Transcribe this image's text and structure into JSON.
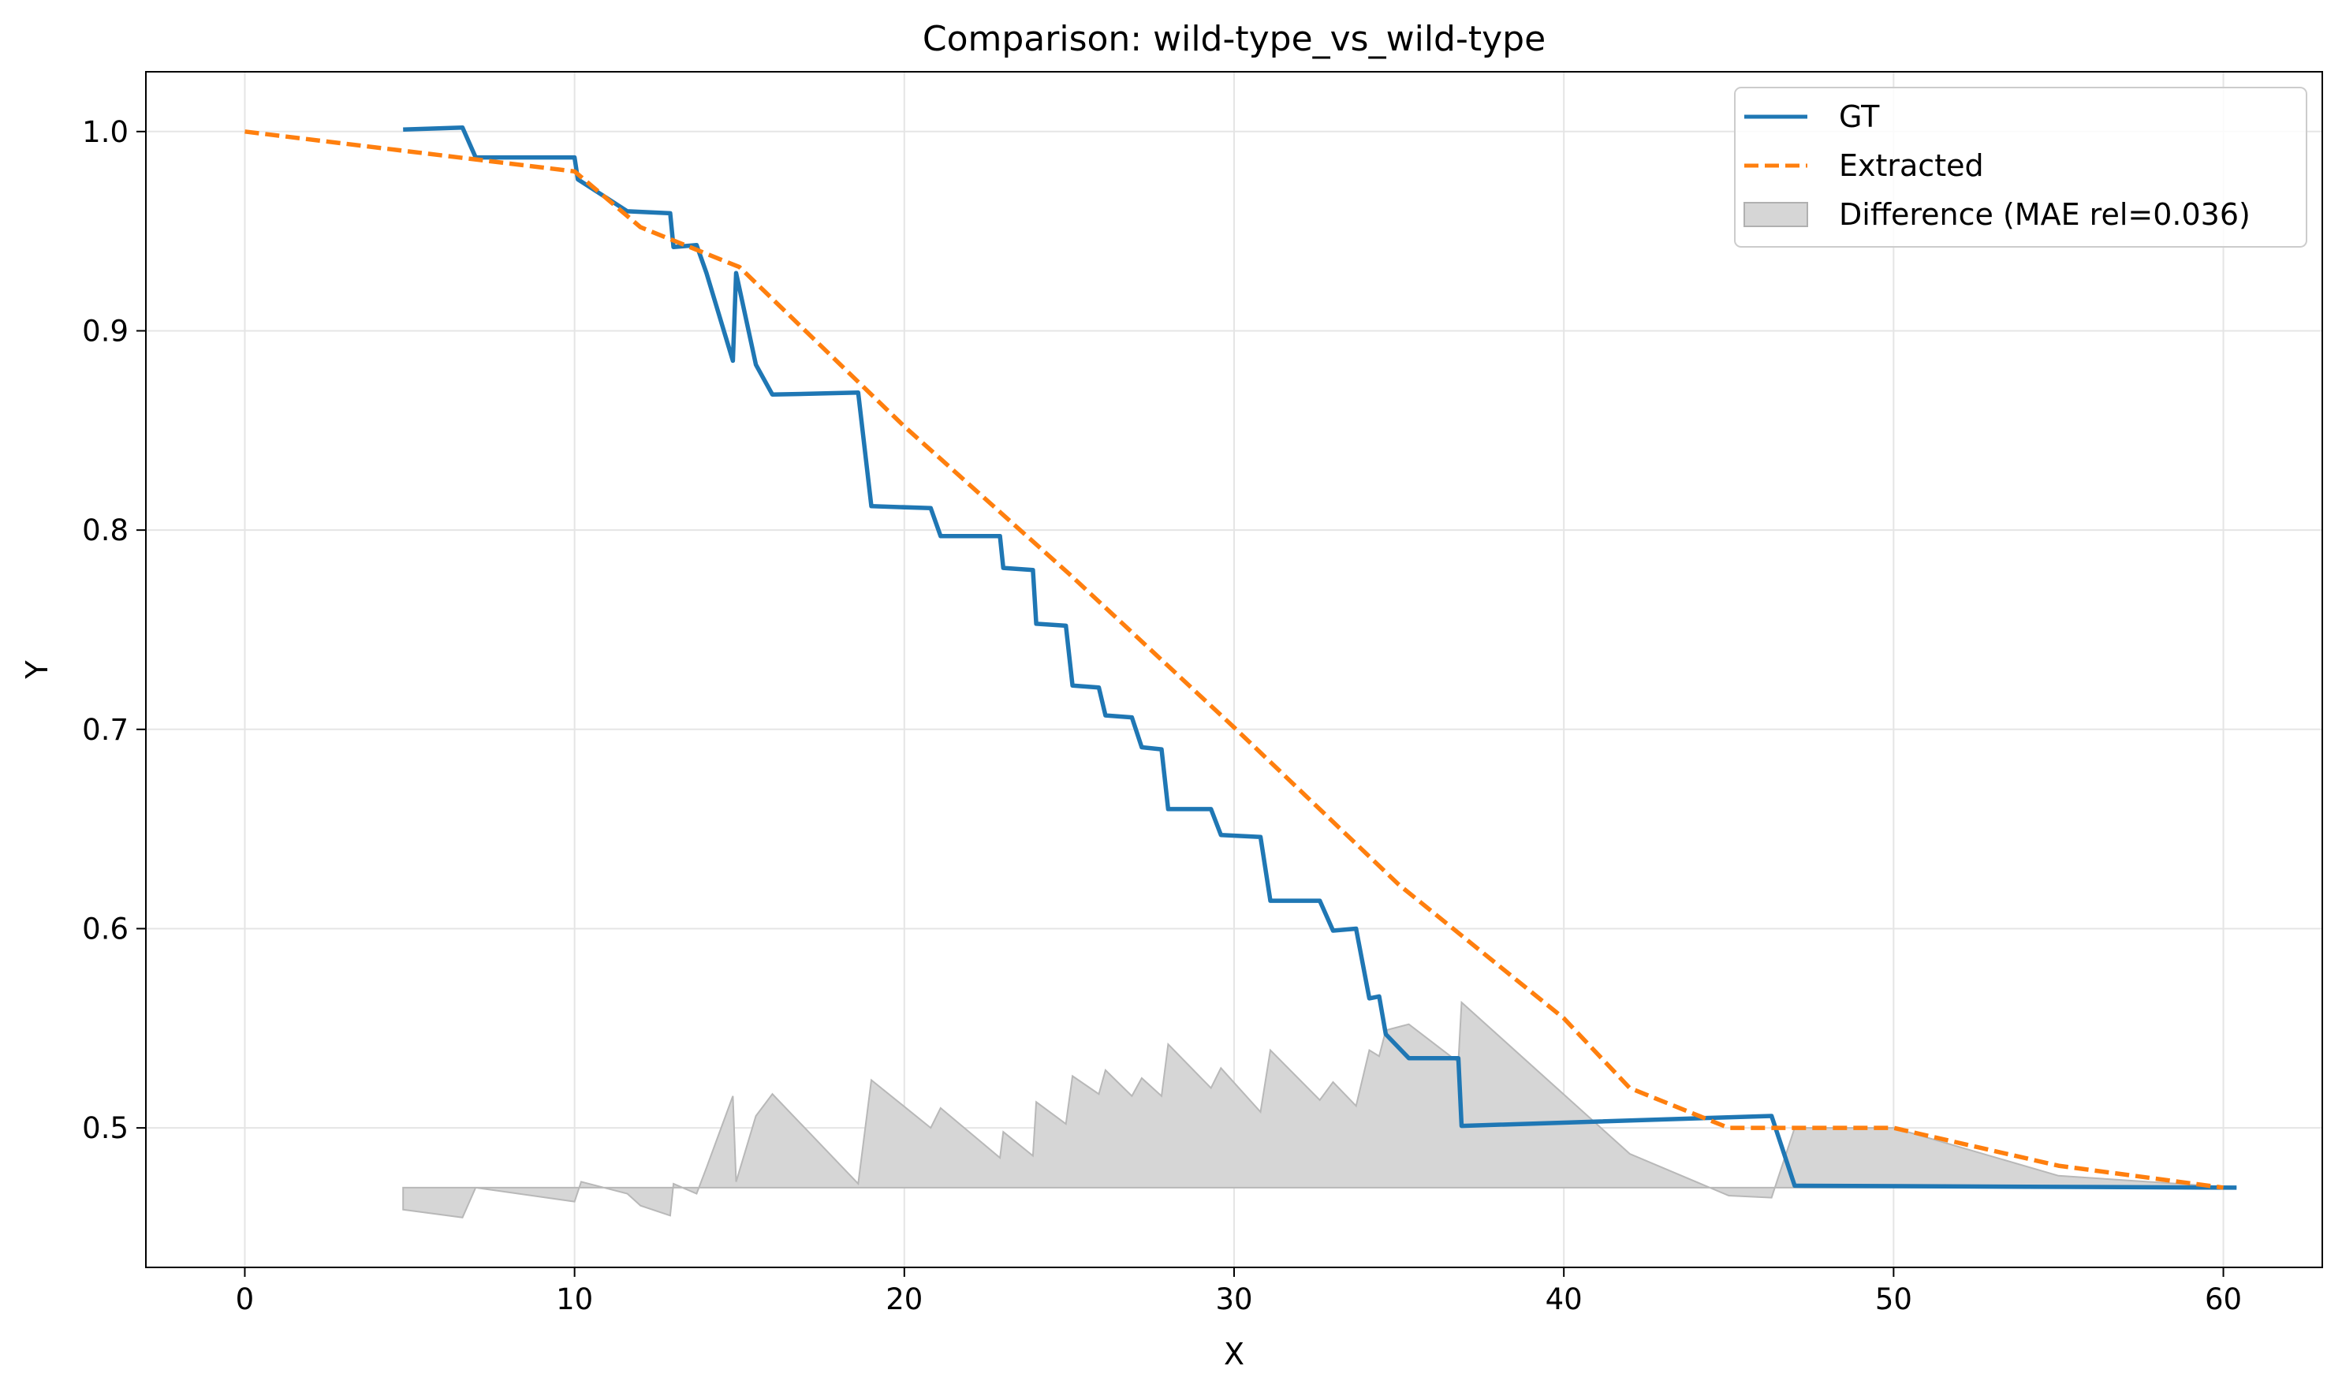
{
  "chart_data": {
    "type": "line",
    "title": "Comparison: wild-type_vs_wild-type",
    "xlabel": "X",
    "ylabel": "Y",
    "xlim": [
      -3,
      63
    ],
    "ylim": [
      0.43,
      1.03
    ],
    "xticks": [
      0,
      10,
      20,
      30,
      40,
      50,
      60
    ],
    "yticks": [
      0.5,
      0.6,
      0.7,
      0.8,
      0.9,
      1.0
    ],
    "xtick_labels": [
      "0",
      "10",
      "20",
      "30",
      "40",
      "50",
      "60"
    ],
    "ytick_labels": [
      "0.5",
      "0.6",
      "0.7",
      "0.8",
      "0.9",
      "1.0"
    ],
    "grid": true,
    "legend_position": "top-right",
    "colors": {
      "gt": "#1f77b4",
      "extracted": "#ff7f0e",
      "difference": "#d6d6d6"
    },
    "series": [
      {
        "name": "GT",
        "style": "solid",
        "x": [
          4.8,
          6.6,
          7.0,
          10.0,
          10.1,
          11.6,
          12.9,
          13.0,
          13.7,
          14.0,
          14.8,
          14.9,
          15.5,
          16.0,
          18.6,
          19.0,
          20.8,
          21.1,
          22.9,
          23.0,
          23.9,
          24.0,
          24.9,
          25.1,
          25.9,
          26.1,
          26.9,
          27.2,
          27.8,
          28.0,
          29.3,
          29.6,
          30.8,
          31.1,
          32.6,
          33.0,
          33.7,
          34.1,
          34.4,
          34.6,
          35.3,
          36.8,
          36.9,
          46.3,
          47.0,
          60.4
        ],
        "y": [
          1.001,
          1.002,
          0.987,
          0.987,
          0.976,
          0.96,
          0.959,
          0.942,
          0.943,
          0.929,
          0.885,
          0.929,
          0.883,
          0.868,
          0.869,
          0.812,
          0.811,
          0.797,
          0.797,
          0.781,
          0.78,
          0.753,
          0.752,
          0.722,
          0.721,
          0.707,
          0.706,
          0.691,
          0.69,
          0.66,
          0.66,
          0.647,
          0.646,
          0.614,
          0.614,
          0.599,
          0.6,
          0.565,
          0.566,
          0.547,
          0.535,
          0.535,
          0.501,
          0.506,
          0.471,
          0.47
        ]
      },
      {
        "name": "Extracted",
        "style": "dashed",
        "x": [
          0,
          5,
          10,
          12,
          15,
          20,
          25,
          30,
          35,
          40,
          42,
          45,
          50,
          55,
          60
        ],
        "y": [
          1.0,
          0.99,
          0.98,
          0.952,
          0.932,
          0.852,
          0.778,
          0.701,
          0.622,
          0.555,
          0.52,
          0.5,
          0.5,
          0.481,
          0.47
        ]
      },
      {
        "name": "Difference (MAE rel=0.036)",
        "style": "area",
        "baseline": 0.47,
        "x": [
          4.8,
          6.6,
          7.0,
          10.0,
          10.2,
          11.6,
          12.0,
          12.9,
          13.0,
          13.7,
          14.0,
          14.8,
          14.9,
          15.5,
          16.0,
          18.6,
          19.0,
          20.8,
          21.1,
          22.9,
          23.0,
          23.9,
          24.0,
          24.9,
          25.1,
          25.9,
          26.1,
          26.9,
          27.2,
          27.8,
          28.0,
          29.3,
          29.6,
          30.8,
          31.1,
          32.6,
          33.0,
          33.7,
          34.1,
          34.4,
          34.6,
          35.3,
          36.8,
          36.9,
          42.0,
          45.0,
          46.3,
          47.0,
          50.0,
          55.0,
          60.4
        ],
        "y": [
          0.459,
          0.455,
          0.47,
          0.463,
          0.473,
          0.467,
          0.461,
          0.456,
          0.472,
          0.467,
          0.48,
          0.516,
          0.473,
          0.506,
          0.517,
          0.472,
          0.524,
          0.5,
          0.51,
          0.485,
          0.498,
          0.486,
          0.513,
          0.502,
          0.526,
          0.517,
          0.529,
          0.516,
          0.525,
          0.516,
          0.542,
          0.52,
          0.53,
          0.508,
          0.539,
          0.514,
          0.523,
          0.511,
          0.539,
          0.536,
          0.549,
          0.552,
          0.533,
          0.563,
          0.487,
          0.466,
          0.465,
          0.5,
          0.5,
          0.476,
          0.47
        ]
      }
    ]
  }
}
